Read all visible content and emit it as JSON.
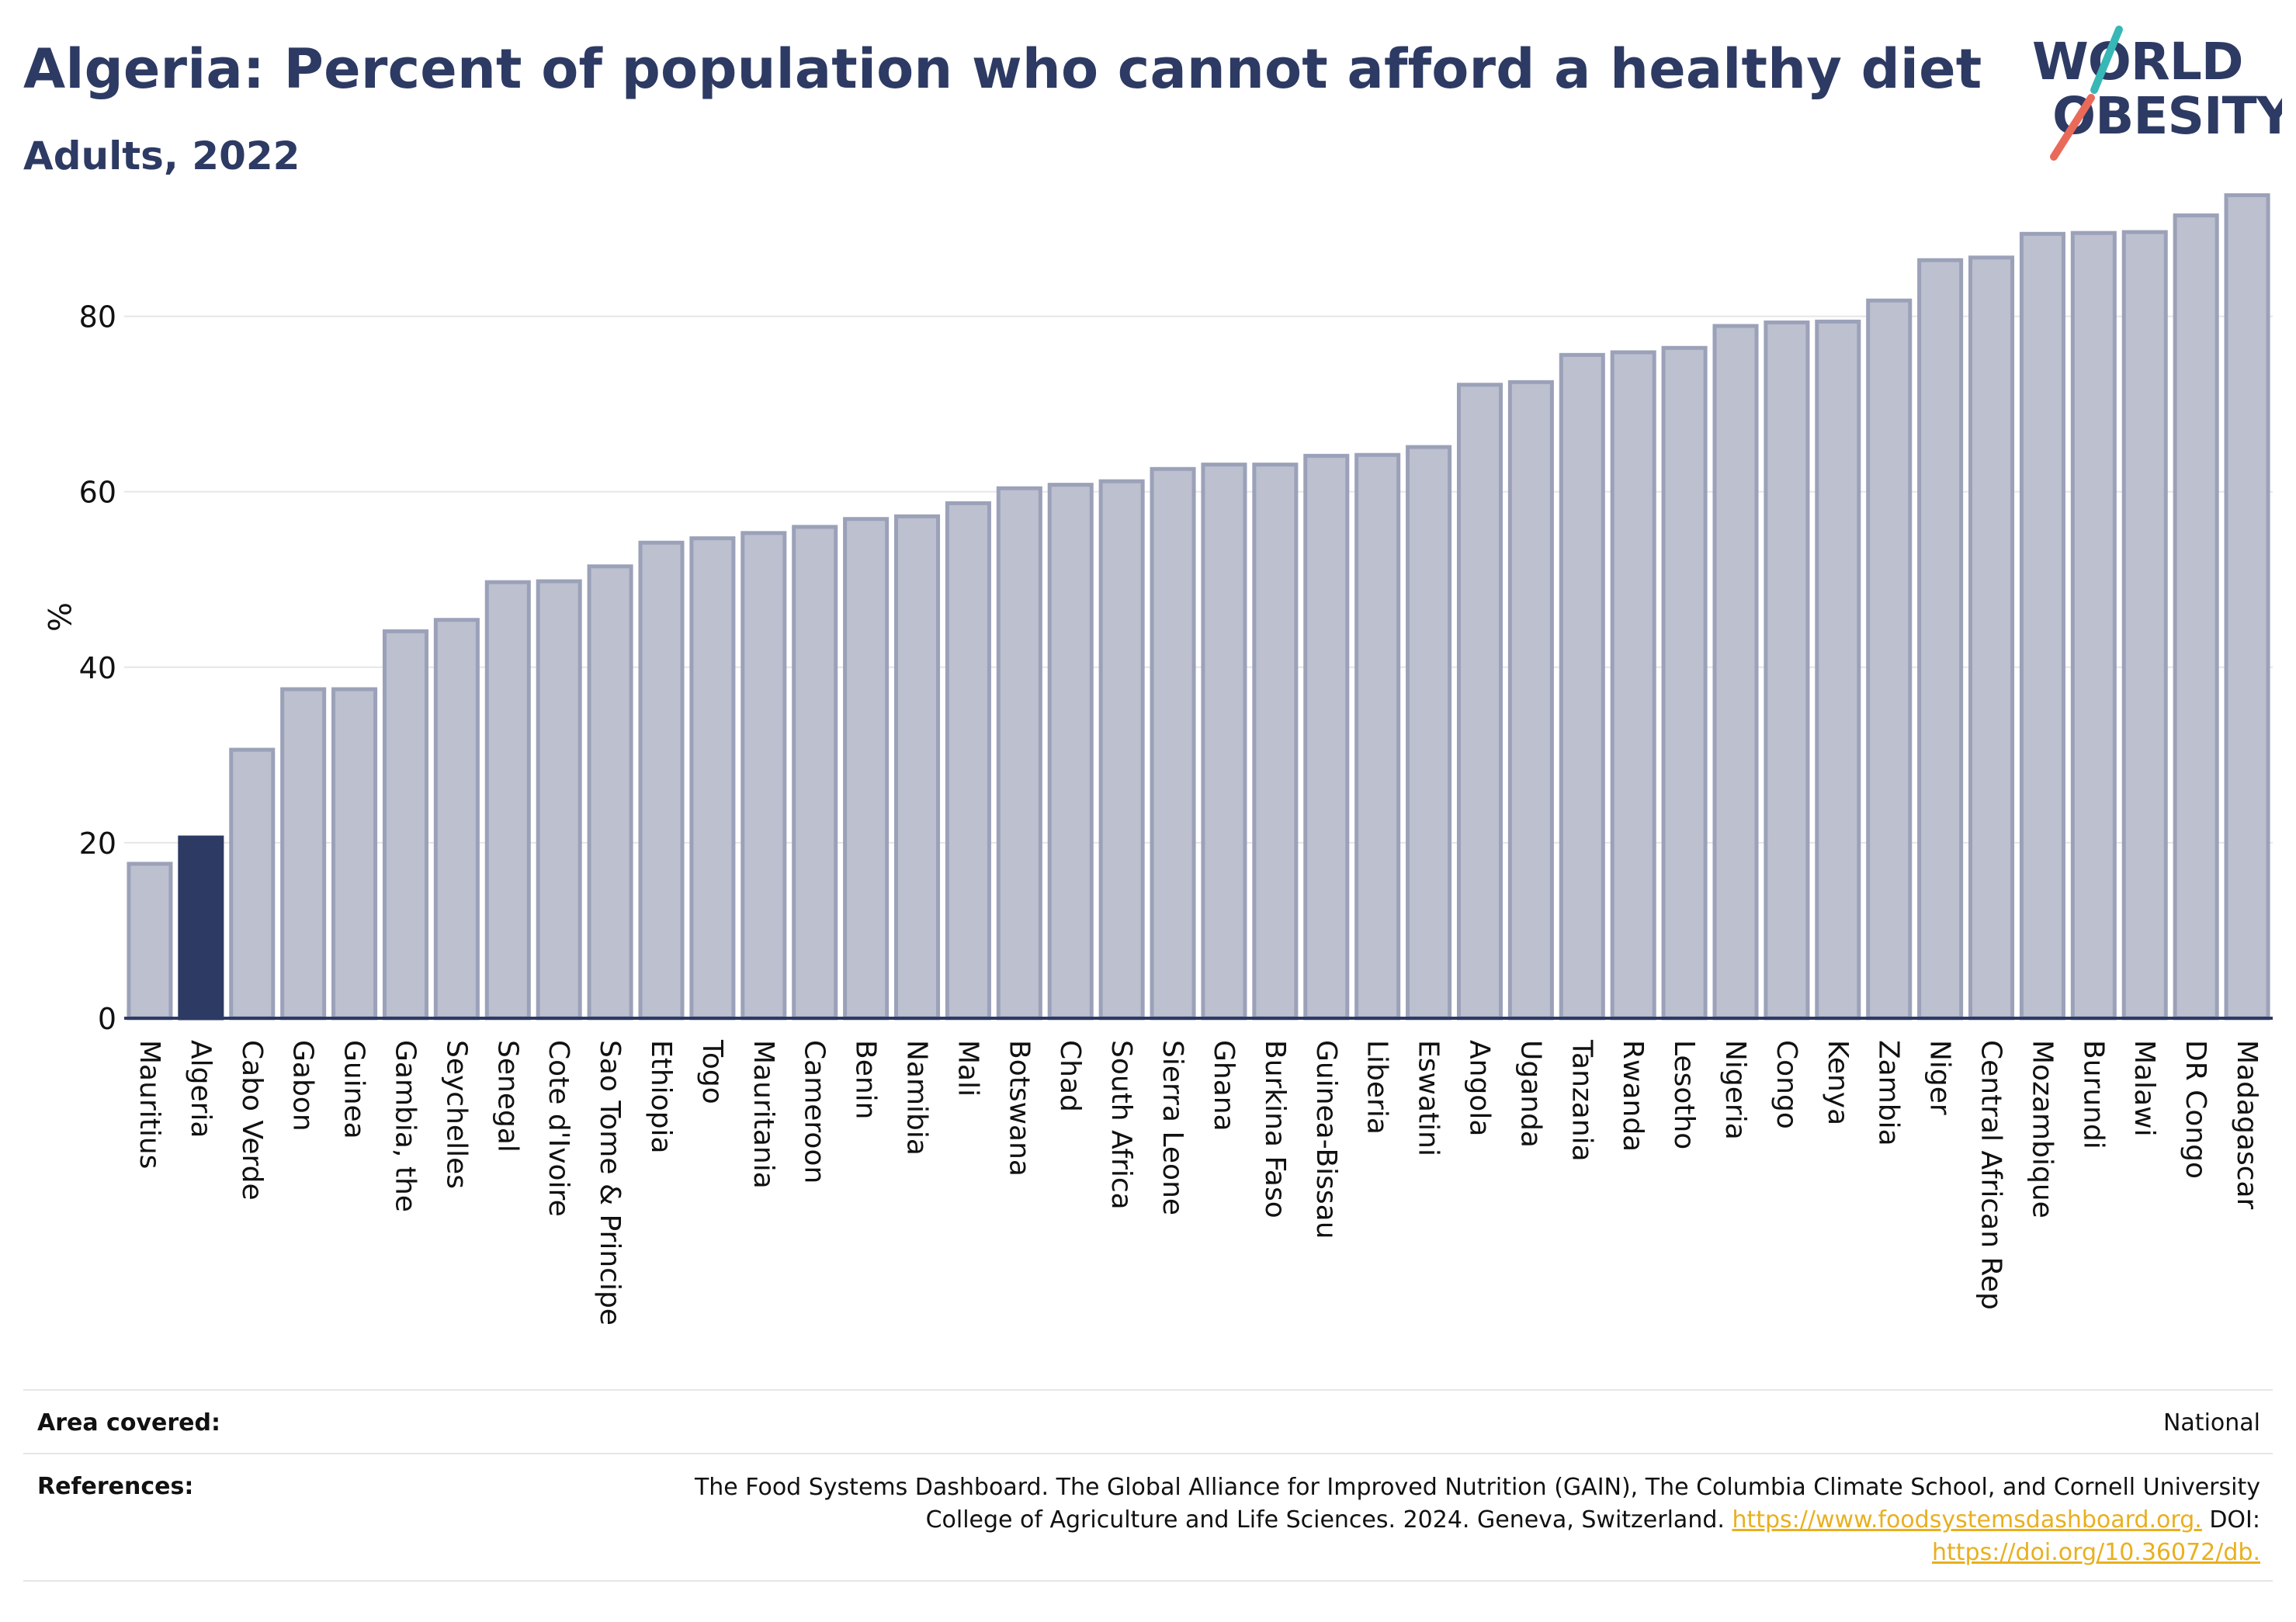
{
  "header": {
    "title": "Algeria: Percent of population who cannot afford a healthy diet",
    "subtitle": "Adults, 2022"
  },
  "logo": {
    "line1": "WORLD",
    "line2": "OBESITY",
    "colors": {
      "text": "#2d3a63",
      "stroke_top": "#37b8b7",
      "stroke_bottom": "#ea6a5a"
    }
  },
  "chart_data": {
    "type": "bar",
    "ylabel": "%",
    "xlabel": "",
    "ylim": [
      0,
      95
    ],
    "yticks": [
      0,
      20,
      40,
      60,
      80
    ],
    "grid": true,
    "highlight": "Algeria",
    "colors": {
      "bar_fill": "#bcc0cf",
      "bar_stroke": "#9ba1b8",
      "highlight_fill": "#2d3a63",
      "grid": "#e6e6e6",
      "axis": "#2d3a63"
    },
    "categories": [
      "Mauritius",
      "Algeria",
      "Cabo Verde",
      "Gabon",
      "Guinea",
      "Gambia, the",
      "Seychelles",
      "Senegal",
      "Cote d'Ivoire",
      "Sao Tome & Principe",
      "Ethiopia",
      "Togo",
      "Mauritania",
      "Cameroon",
      "Benin",
      "Namibia",
      "Mali",
      "Botswana",
      "Chad",
      "South Africa",
      "Sierra Leone",
      "Ghana",
      "Burkina Faso",
      "Guinea-Bissau",
      "Liberia",
      "Eswatini",
      "Angola",
      "Uganda",
      "Tanzania",
      "Rwanda",
      "Lesotho",
      "Nigeria",
      "Congo",
      "Kenya",
      "Zambia",
      "Niger",
      "Central African Rep",
      "Mozambique",
      "Burundi",
      "Malawi",
      "DR Congo",
      "Madagascar"
    ],
    "values": [
      17.6,
      20.6,
      30.6,
      37.5,
      37.5,
      44.1,
      45.4,
      49.7,
      49.8,
      51.5,
      54.2,
      54.7,
      55.3,
      56.0,
      56.9,
      57.2,
      58.7,
      60.4,
      60.8,
      61.2,
      62.6,
      63.1,
      63.1,
      64.1,
      64.2,
      65.1,
      72.2,
      72.5,
      75.6,
      75.9,
      76.4,
      78.9,
      79.3,
      79.4,
      81.8,
      86.4,
      86.7,
      89.4,
      89.5,
      89.6,
      91.5,
      93.8
    ]
  },
  "footer": {
    "area_label": "Area covered:",
    "area_value": "National",
    "references_label": "References:",
    "references_text": "The Food Systems Dashboard. The Global Alliance for Improved Nutrition (GAIN), The Columbia Climate School, and Cornell University College of Agriculture and Life Sciences. 2024. Geneva, Switzerland.",
    "references_link1": "https://www.foodsystemsdashboard.org.",
    "references_doi_label": "DOI:",
    "references_link2": "https://doi.org/10.36072/db."
  }
}
